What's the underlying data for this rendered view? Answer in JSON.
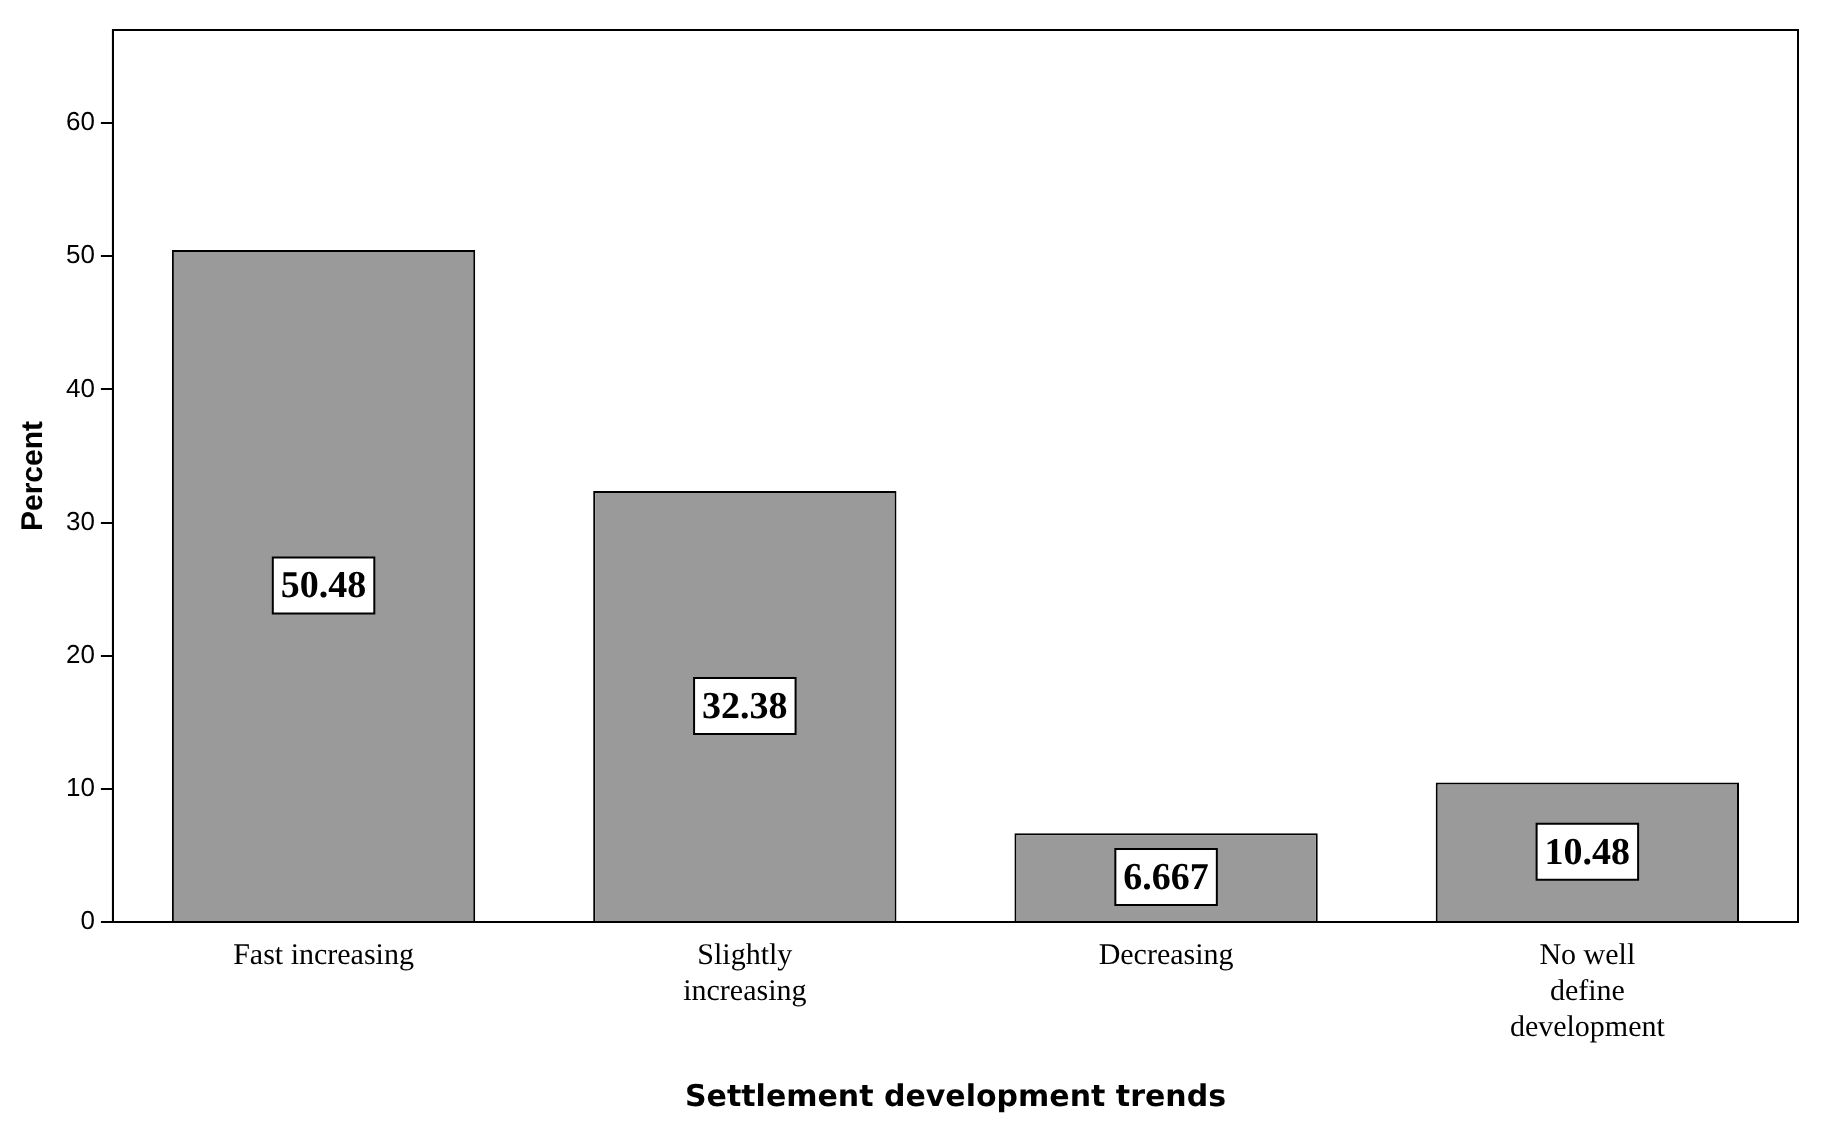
{
  "chart_data": {
    "type": "bar",
    "xlabel": "Settlement development trends",
    "ylabel": "Percent",
    "categories": [
      "Fast increasing",
      "Slightly increasing",
      "Decreasing",
      "No well define development"
    ],
    "values": [
      50.48,
      32.38,
      6.667,
      10.48
    ],
    "color": "#9a9a9a",
    "ylim": [
      0,
      67
    ],
    "yticks": [
      0,
      10,
      20,
      30,
      40,
      50,
      60
    ],
    "grid": false,
    "legend": false,
    "data_labels": true
  }
}
